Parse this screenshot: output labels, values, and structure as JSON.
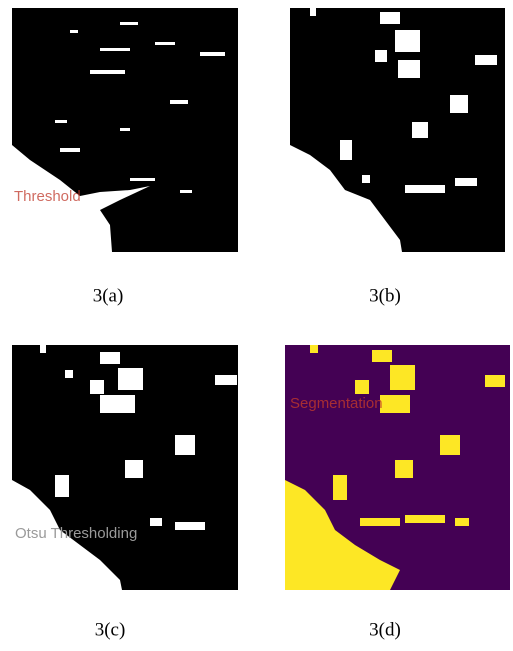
{
  "panels": [
    {
      "caption": "3(a)",
      "overlay": "Threshold"
    },
    {
      "caption": "3(b)"
    },
    {
      "caption": "3(c)",
      "overlay": "Otsu Thresholding"
    },
    {
      "caption": "3(d)",
      "overlay": "Segmentation"
    }
  ]
}
